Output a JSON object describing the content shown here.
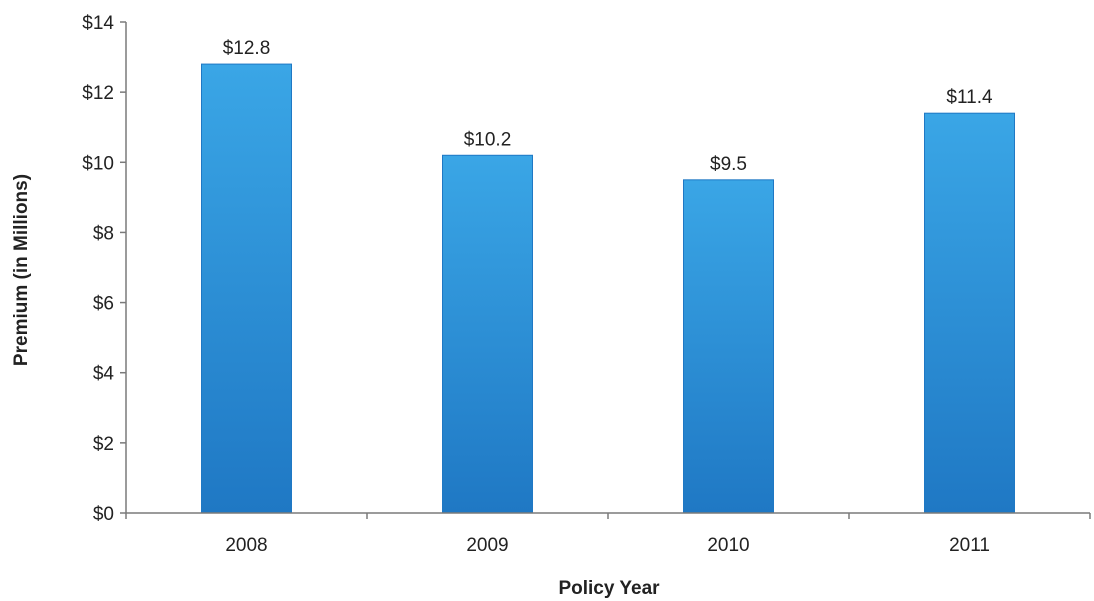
{
  "chart_data": {
    "type": "bar",
    "categories": [
      "2008",
      "2009",
      "2010",
      "2011"
    ],
    "values": [
      12.8,
      10.2,
      9.5,
      11.4
    ],
    "data_labels": [
      "$12.8",
      "$10.2",
      "$9.5",
      "$11.4"
    ],
    "title": "",
    "xlabel": "Policy Year",
    "ylabel": "Premium (in Millions)",
    "ylim": [
      0,
      14
    ],
    "yticks": [
      0,
      2,
      4,
      6,
      8,
      10,
      12,
      14
    ],
    "ytick_labels": [
      "$0",
      "$2",
      "$4",
      "$6",
      "$8",
      "$10",
      "$12",
      "$14"
    ],
    "grid": false,
    "legend": "none",
    "bar_color": "#2a8fd6",
    "bar_color_light": "#3aa6e6",
    "bar_color_dark": "#1f78c4"
  }
}
